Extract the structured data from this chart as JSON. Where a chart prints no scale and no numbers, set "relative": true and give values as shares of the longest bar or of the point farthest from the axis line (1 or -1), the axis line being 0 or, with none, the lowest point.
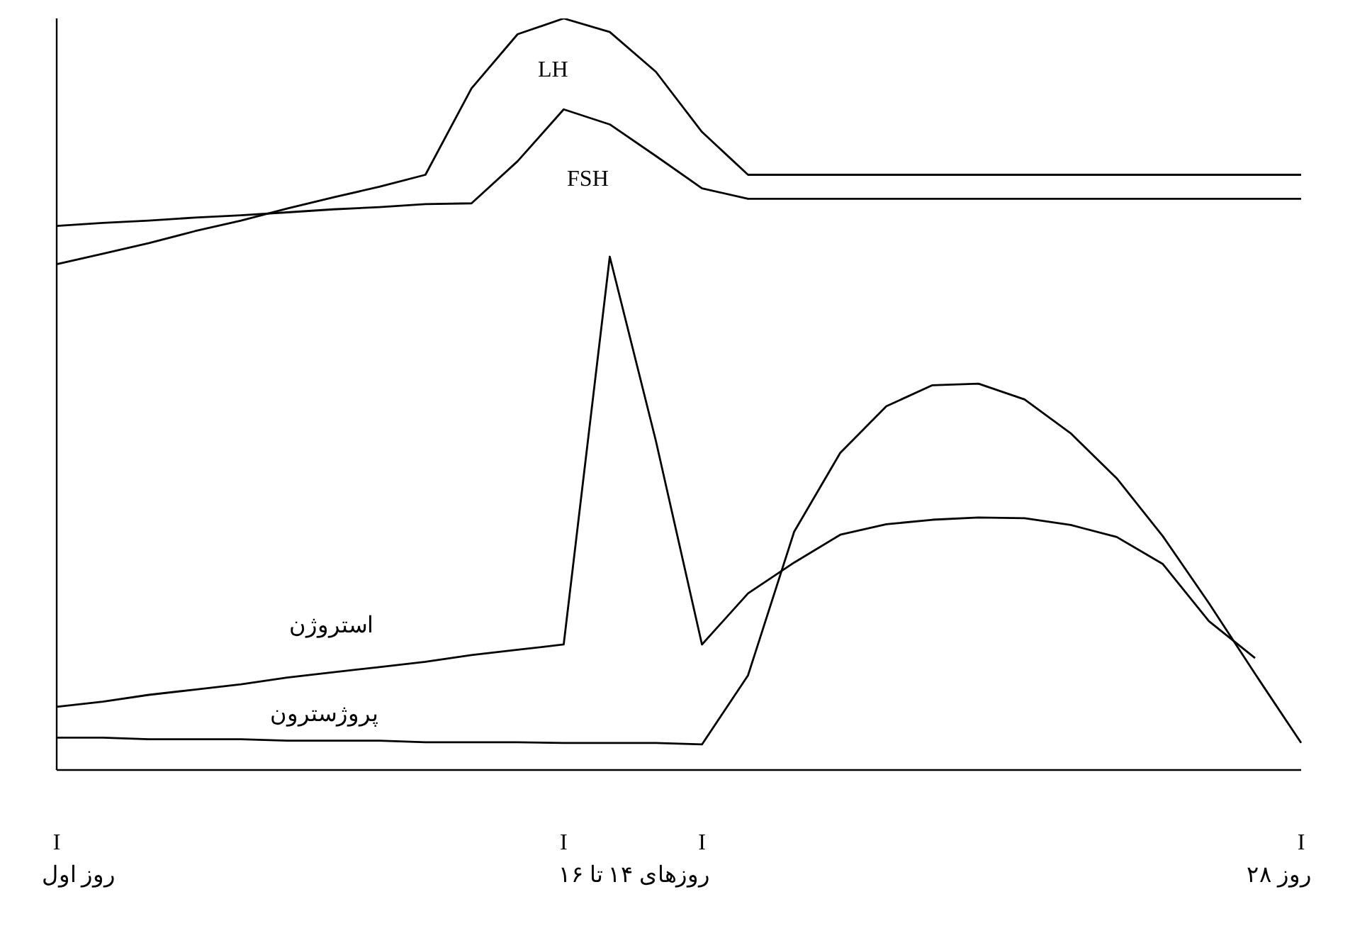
{
  "chart_data": {
    "type": "line",
    "relative": true,
    "categories": [
      "I",
      null,
      null,
      null,
      null,
      null,
      null,
      null,
      null,
      null,
      null,
      "I",
      null,
      null,
      "I",
      null,
      null,
      null,
      null,
      null,
      null,
      null,
      null,
      null,
      null,
      null,
      null,
      "I"
    ],
    "annotations": [
      "روز اول",
      "روزهای ۱۴ تا ۱۶",
      "روز ۲۸"
    ],
    "marker": "none",
    "series": [
      {
        "name": "LH",
        "color": "#000000",
        "values": [
          0.673,
          0.687,
          0.701,
          0.717,
          0.731,
          0.747,
          0.762,
          0.776,
          0.792,
          0.907,
          0.979,
          1.0,
          0.982,
          0.929,
          0.849,
          0.792,
          0.792,
          0.792,
          0.792,
          0.792,
          0.792,
          0.792,
          0.792,
          0.792,
          0.792,
          0.792,
          0.792,
          0.792
        ]
      },
      {
        "name": "FSH",
        "color": "#000000",
        "values": [
          0.724,
          0.728,
          0.731,
          0.735,
          0.738,
          0.742,
          0.746,
          0.749,
          0.753,
          0.754,
          0.81,
          0.879,
          0.859,
          0.817,
          0.774,
          0.76,
          0.76,
          0.76,
          0.76,
          0.76,
          0.76,
          0.76,
          0.76,
          0.76,
          0.76,
          0.76,
          0.76,
          0.76
        ]
      },
      {
        "name": "استروژن",
        "color": "#000000",
        "values": [
          0.084,
          0.091,
          0.1,
          0.107,
          0.114,
          0.123,
          0.13,
          0.137,
          0.144,
          0.153,
          0.16,
          0.167,
          0.683,
          0.438,
          0.167,
          0.235,
          0.276,
          0.313,
          0.327,
          0.333,
          0.336,
          0.335,
          0.326,
          0.31,
          0.274,
          0.198,
          0.149,
          null
        ]
      },
      {
        "name": "پروژسترون",
        "color": "#000000",
        "values": [
          0.043,
          0.043,
          0.041,
          0.041,
          0.041,
          0.039,
          0.039,
          0.039,
          0.037,
          0.037,
          0.037,
          0.036,
          0.036,
          0.036,
          0.034,
          0.126,
          0.317,
          0.422,
          0.484,
          0.512,
          0.514,
          0.493,
          0.448,
          0.388,
          0.311,
          0.222,
          0.128,
          0.036
        ]
      }
    ]
  }
}
